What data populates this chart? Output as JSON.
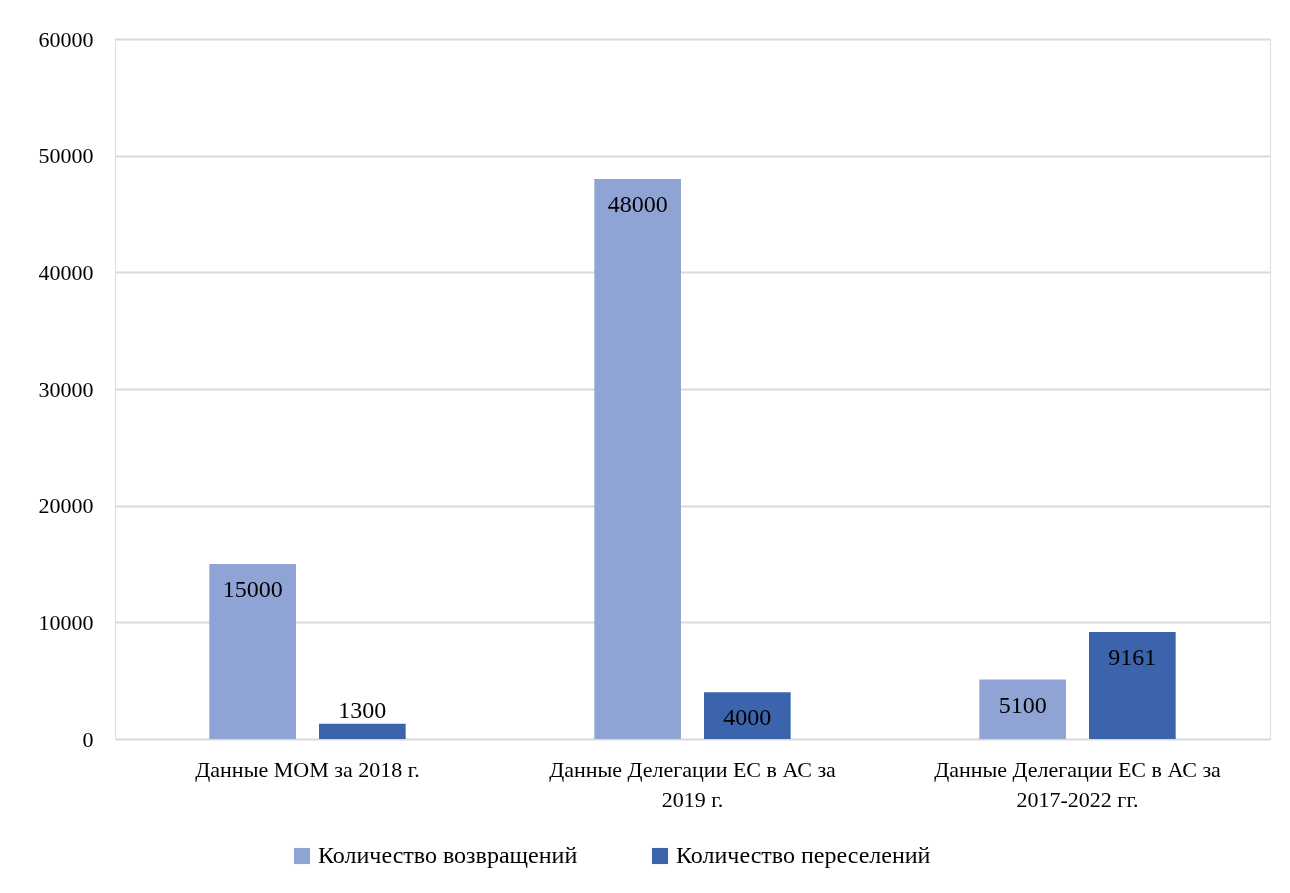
{
  "chart_data": {
    "type": "bar",
    "categories": [
      "Данные МОМ за 2018 г.",
      "Данные Делегации ЕС в АС за 2019 г.",
      "Данные Делегации ЕС в АС за 2017-2022 гг."
    ],
    "series": [
      {
        "name": "Количество возвращений",
        "color": "#8fa3d4",
        "values": [
          15000,
          48000,
          5100
        ]
      },
      {
        "name": "Количество переселений",
        "color": "#3c64ac",
        "values": [
          1300,
          4000,
          9161
        ]
      }
    ],
    "ylim": [
      0,
      60000
    ],
    "yticks": [
      0,
      10000,
      20000,
      30000,
      40000,
      50000,
      60000
    ],
    "grid": "y",
    "legend": "bottom",
    "data_labels": true
  }
}
